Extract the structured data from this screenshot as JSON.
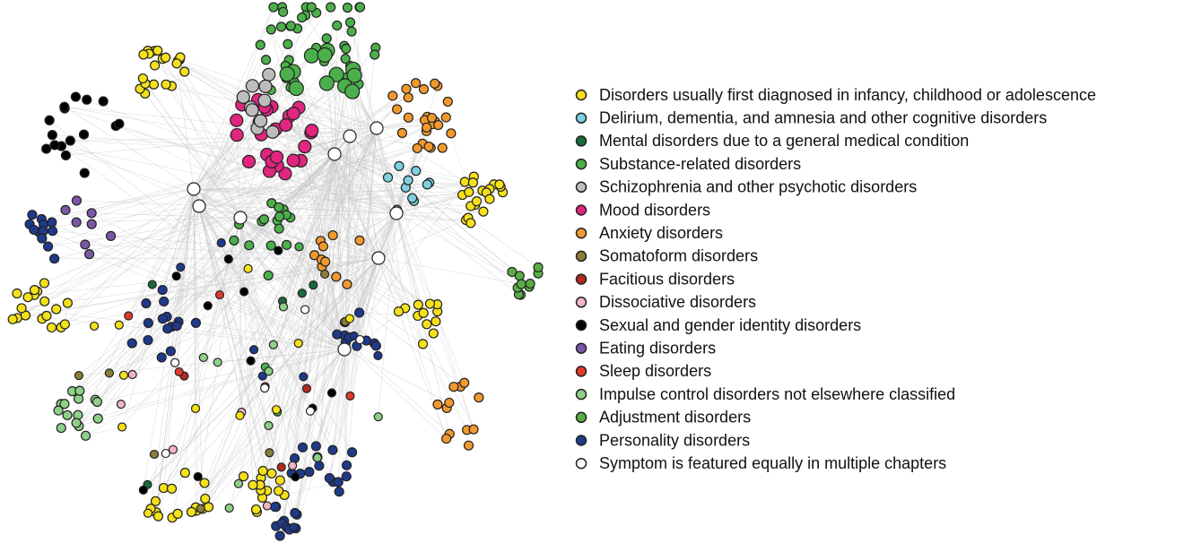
{
  "legend": [
    {
      "label": "Disorders usually first diagnosed in infancy, childhood or adolescence",
      "color": "#f5e11a"
    },
    {
      "label": "Delirium, dementia, and amnesia and other cognitive disorders",
      "color": "#7ecfe0"
    },
    {
      "label": "Mental disorders due to a general medical condition",
      "color": "#1a6b3a"
    },
    {
      "label": "Substance-related disorders",
      "color": "#4bb04b"
    },
    {
      "label": "Schizophrenia and other psychotic disorders",
      "color": "#bdbdbd"
    },
    {
      "label": "Mood disorders",
      "color": "#e0267f"
    },
    {
      "label": "Anxiety disorders",
      "color": "#f2992e"
    },
    {
      "label": "Somatoform disorders",
      "color": "#8b7d3a"
    },
    {
      "label": "Facitious disorders",
      "color": "#b22a22"
    },
    {
      "label": "Dissociative disorders",
      "color": "#f0b4c4"
    },
    {
      "label": "Sexual and gender identity disorders",
      "color": "#000000"
    },
    {
      "label": "Eating disorders",
      "color": "#7b57a5"
    },
    {
      "label": "Sleep disorders",
      "color": "#e03a2e"
    },
    {
      "label": "Impulse control disorders not elsewhere classified",
      "color": "#8fcf8a"
    },
    {
      "label": "Adjustment disorders",
      "color": "#5aad45"
    },
    {
      "label": "Personality disorders",
      "color": "#1f3a8a"
    },
    {
      "label": "Symptom is featured equally in multiple chapters",
      "color": "#ffffff"
    }
  ]
}
